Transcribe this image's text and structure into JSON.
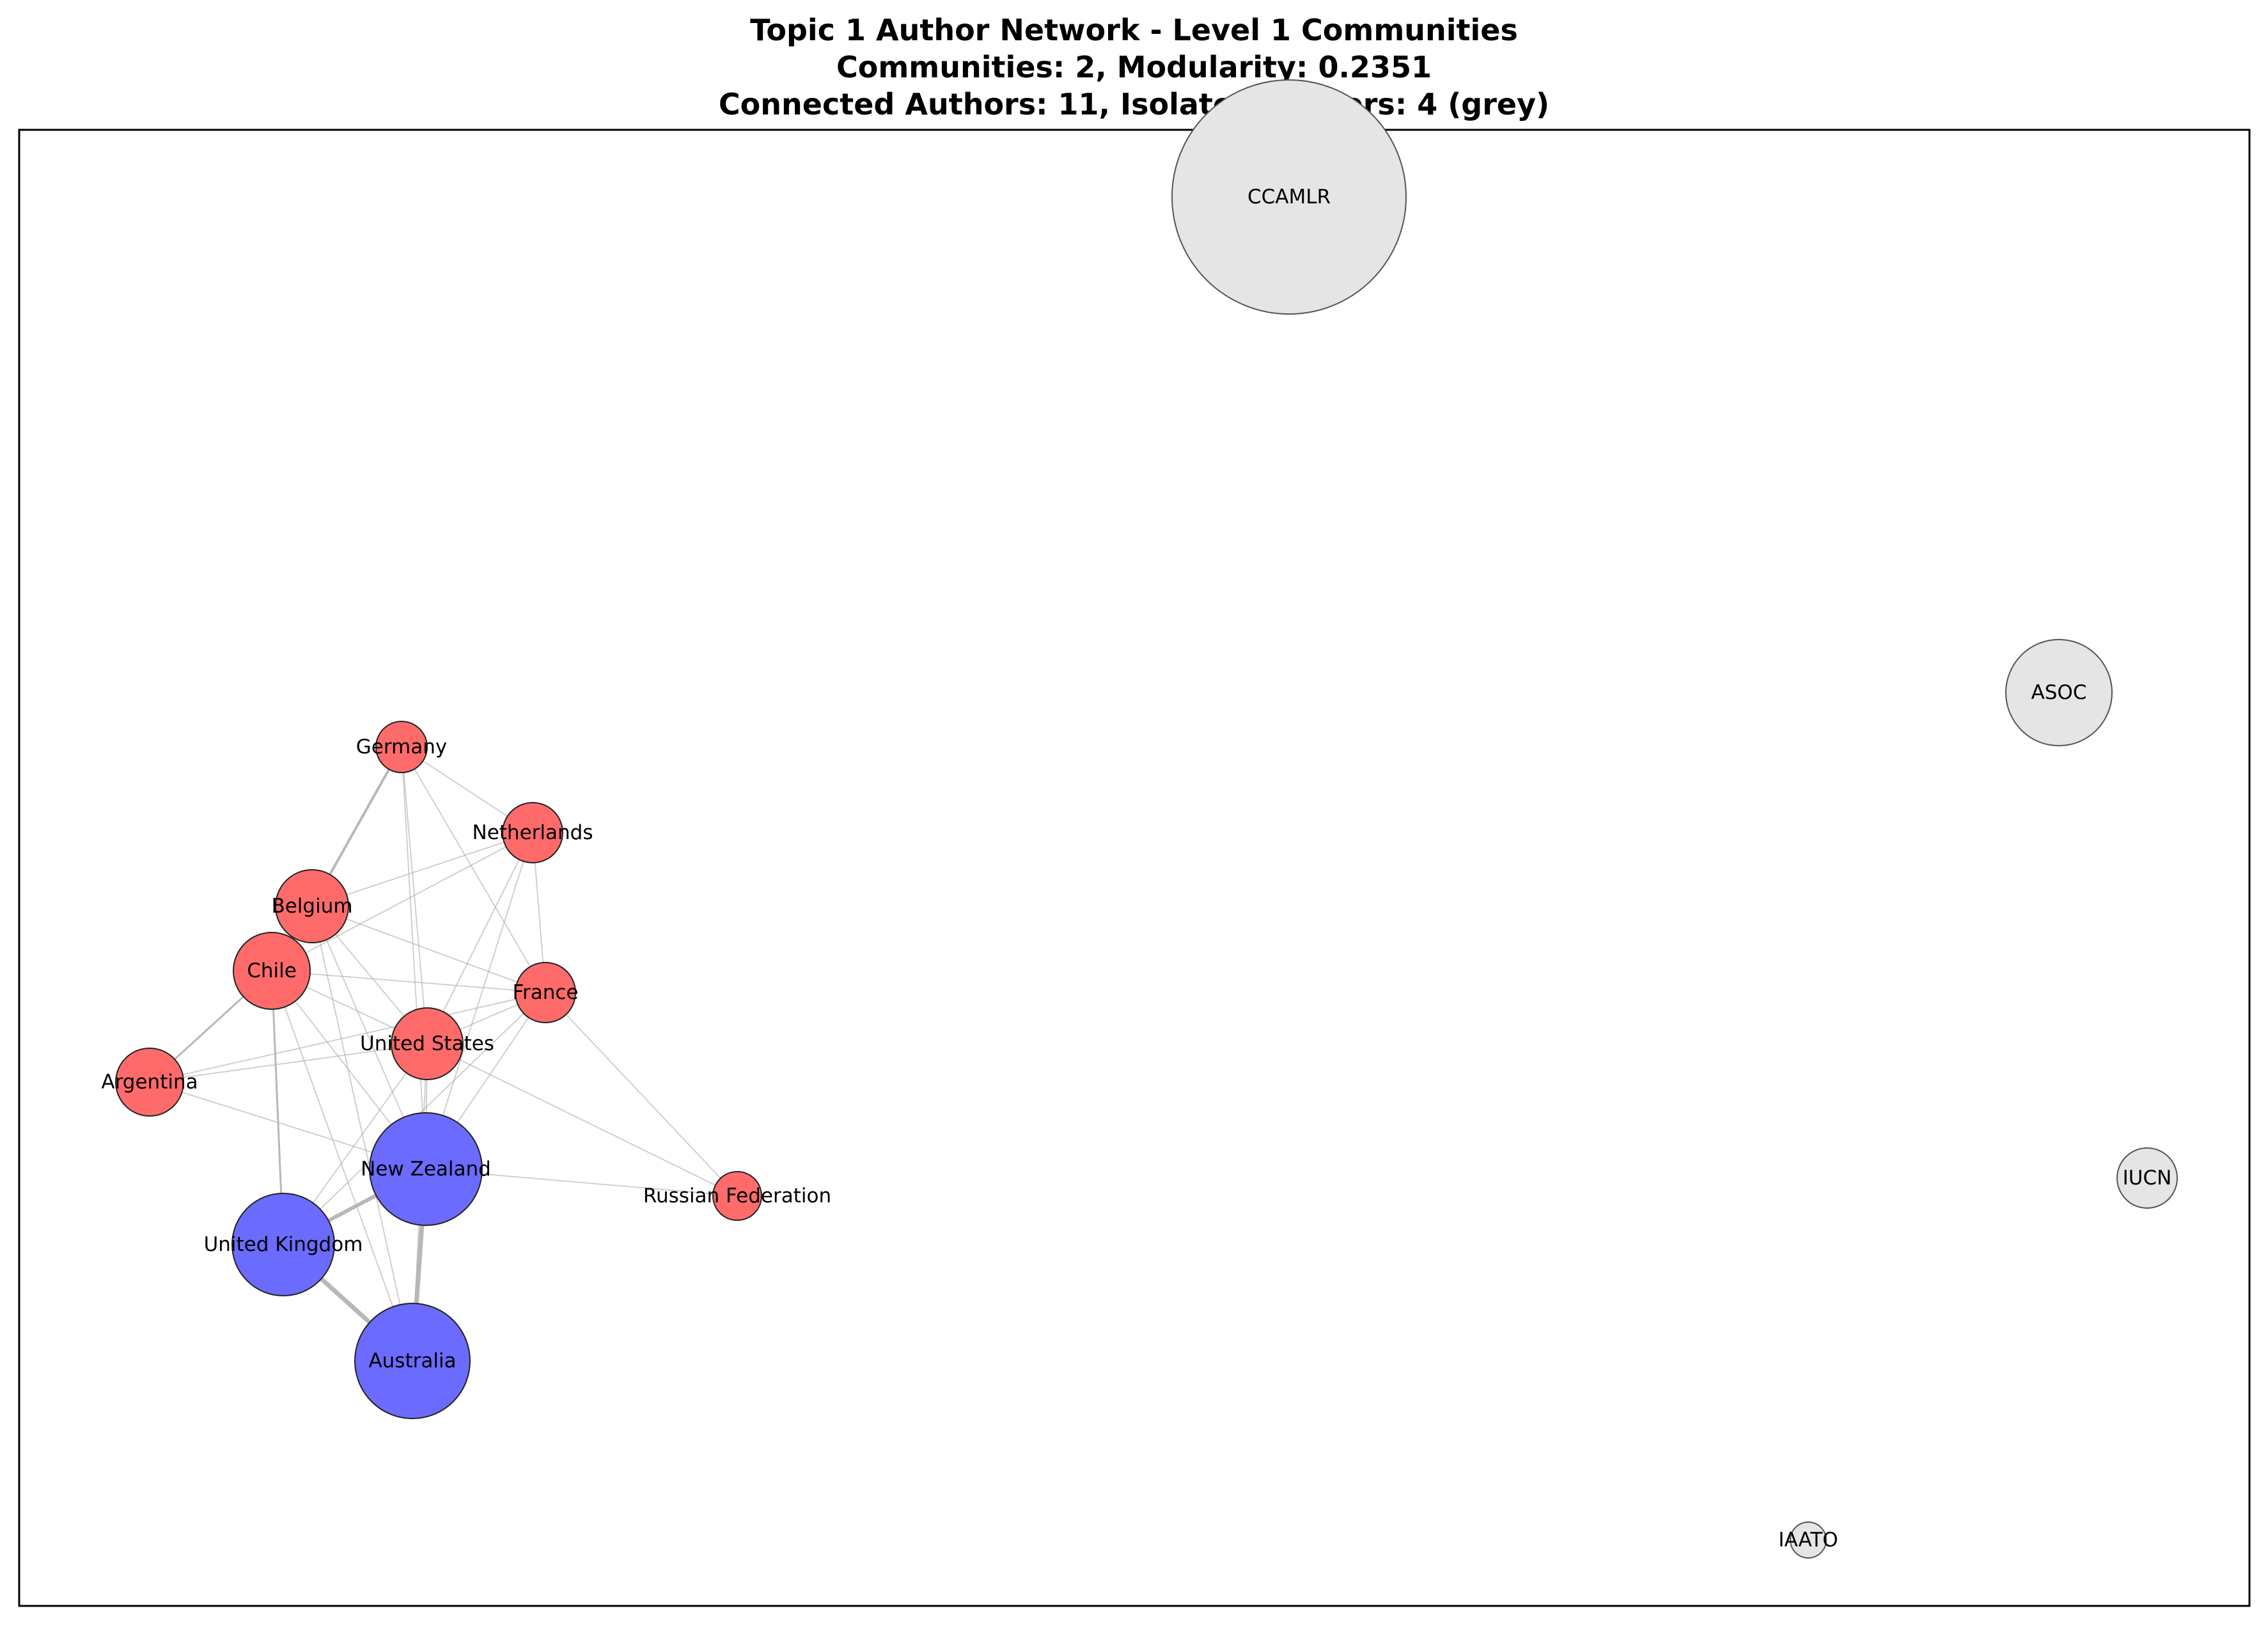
{
  "title": {
    "line1": "Topic 1 Author Network - Level 1 Communities",
    "line2": "Communities: 2, Modularity: 0.2351",
    "line3": "Connected Authors: 11, Isolated Authors: 4 (grey)"
  },
  "colors": {
    "community_red": "#ff6b6b",
    "community_blue": "#6b6bff",
    "isolated_grey": "#e5e5e5",
    "edge": "#b0b0b0"
  },
  "nodes": [
    {
      "id": "germany",
      "label": "Germany",
      "community": "red"
    },
    {
      "id": "netherlands",
      "label": "Netherlands",
      "community": "red"
    },
    {
      "id": "belgium",
      "label": "Belgium",
      "community": "red"
    },
    {
      "id": "chile",
      "label": "Chile",
      "community": "red"
    },
    {
      "id": "france",
      "label": "France",
      "community": "red"
    },
    {
      "id": "united-states",
      "label": "United States",
      "community": "red"
    },
    {
      "id": "argentina",
      "label": "Argentina",
      "community": "red"
    },
    {
      "id": "russian-federation",
      "label": "Russian Federation",
      "community": "red"
    },
    {
      "id": "new-zealand",
      "label": "New Zealand",
      "community": "blue"
    },
    {
      "id": "united-kingdom",
      "label": "United Kingdom",
      "community": "blue"
    },
    {
      "id": "australia",
      "label": "Australia",
      "community": "blue"
    },
    {
      "id": "ccamlr",
      "label": "CCAMLR",
      "community": "isolated"
    },
    {
      "id": "asoc",
      "label": "ASOC",
      "community": "isolated"
    },
    {
      "id": "iucn",
      "label": "IUCN",
      "community": "isolated"
    },
    {
      "id": "iaato",
      "label": "IAATO",
      "community": "isolated"
    }
  ],
  "edges": [
    [
      "germany",
      "belgium"
    ],
    [
      "germany",
      "netherlands"
    ],
    [
      "germany",
      "united-states"
    ],
    [
      "germany",
      "france"
    ],
    [
      "germany",
      "new-zealand"
    ],
    [
      "netherlands",
      "belgium"
    ],
    [
      "netherlands",
      "chile"
    ],
    [
      "netherlands",
      "france"
    ],
    [
      "netherlands",
      "united-states"
    ],
    [
      "netherlands",
      "new-zealand"
    ],
    [
      "belgium",
      "chile"
    ],
    [
      "belgium",
      "united-states"
    ],
    [
      "belgium",
      "france"
    ],
    [
      "belgium",
      "new-zealand"
    ],
    [
      "belgium",
      "australia"
    ],
    [
      "chile",
      "argentina"
    ],
    [
      "chile",
      "united-states"
    ],
    [
      "chile",
      "france"
    ],
    [
      "chile",
      "new-zealand"
    ],
    [
      "chile",
      "united-kingdom"
    ],
    [
      "chile",
      "australia"
    ],
    [
      "france",
      "united-states"
    ],
    [
      "france",
      "argentina"
    ],
    [
      "france",
      "new-zealand"
    ],
    [
      "france",
      "russian-federation"
    ],
    [
      "france",
      "united-kingdom"
    ],
    [
      "united-states",
      "argentina"
    ],
    [
      "united-states",
      "new-zealand"
    ],
    [
      "united-states",
      "united-kingdom"
    ],
    [
      "united-states",
      "australia"
    ],
    [
      "united-states",
      "russian-federation"
    ],
    [
      "argentina",
      "new-zealand"
    ],
    [
      "new-zealand",
      "united-kingdom"
    ],
    [
      "new-zealand",
      "australia"
    ],
    [
      "new-zealand",
      "russian-federation"
    ],
    [
      "united-kingdom",
      "australia"
    ]
  ]
}
